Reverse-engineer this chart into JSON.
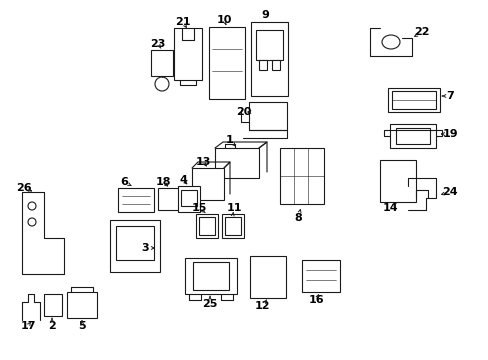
{
  "background_color": "#ffffff",
  "line_color": "#1a1a1a",
  "text_color": "#000000",
  "fig_w": 4.89,
  "fig_h": 3.6,
  "dpi": 100
}
